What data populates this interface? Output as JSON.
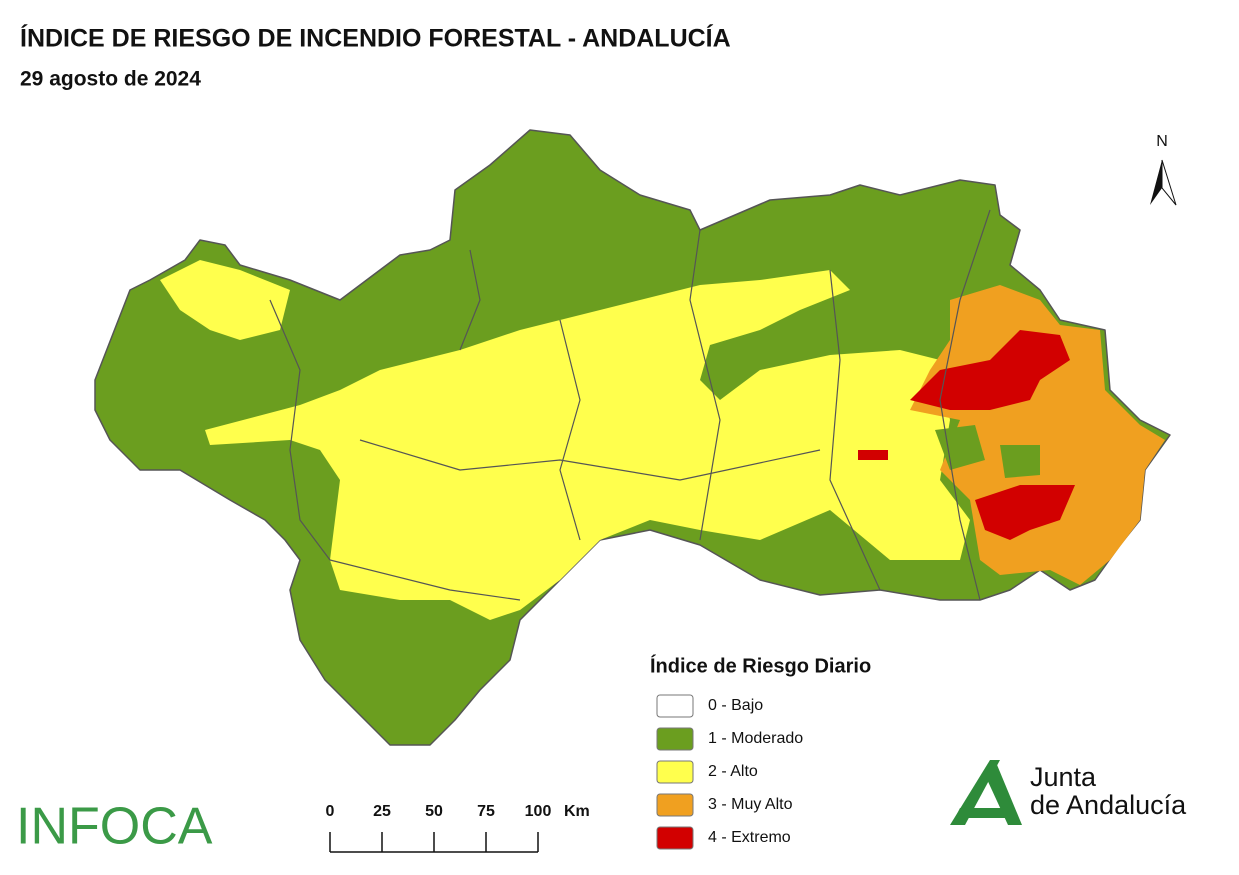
{
  "header": {
    "title": "ÍNDICE DE RIESGO DE INCENDIO FORESTAL - ANDALUCÍA",
    "subtitle": "29 agosto de 2024"
  },
  "north": "N",
  "legend": {
    "title": "Índice de Riesgo Diario",
    "items": [
      {
        "label": "0 - Bajo",
        "color": "#ffffff"
      },
      {
        "label": "1 - Moderado",
        "color": "#6b9e1f"
      },
      {
        "label": "2 - Alto",
        "color": "#ffff4d"
      },
      {
        "label": "3 - Muy Alto",
        "color": "#f0a020"
      },
      {
        "label": "4 - Extremo",
        "color": "#d20000"
      }
    ]
  },
  "scale": {
    "ticks": [
      0,
      25,
      50,
      75,
      100
    ],
    "unit": "Km"
  },
  "logos": {
    "infoca": "INFOCA",
    "junta_line1": "Junta",
    "junta_line2": "de Andalucía"
  }
}
